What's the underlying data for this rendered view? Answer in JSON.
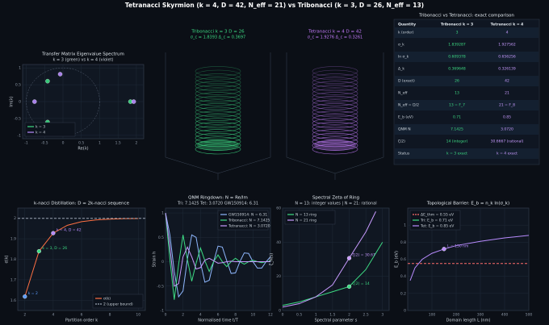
{
  "title": "Tetranacci Skyrmion  (k = 4,  D = 42,  N_eff = 21)  vs  Tribonacci  (k = 3,  D = 26,  N_eff = 13)",
  "chart_data": [
    {
      "type": "scatter",
      "title": "Transfer Matrix Eigenvalue Spectrum",
      "subtitle": "k = 3 (green) vs k = 4 (violet)",
      "xlabel": "Re(λ)",
      "ylabel": "Im(λ)",
      "xlim": [
        -1.1,
        2.2
      ],
      "ylim": [
        -1.1,
        1.1
      ],
      "xticks": [
        -1,
        -0.5,
        0,
        0.5,
        1,
        1.5,
        2
      ],
      "yticks": [
        -1,
        -0.5,
        0,
        0.5,
        1
      ],
      "series": [
        {
          "name": "k = 3",
          "color": "#3ddc84",
          "x": [
            1.8393,
            -0.4196,
            -0.4196
          ],
          "values": [
            0,
            0.6063,
            -0.6063
          ]
        },
        {
          "name": "k = 4",
          "color": "#b98cff",
          "x": [
            1.9276,
            -0.7748,
            -0.0764,
            -0.0764
          ],
          "values": [
            0,
            0,
            0.8147,
            -0.8147
          ]
        }
      ]
    },
    {
      "type": "cylinder",
      "title": "Tribonacci  k = 3  D = 26",
      "subtitle": "σ_c = 1.8393  Δ_c = 0.3697",
      "color": "#3ddc84"
    },
    {
      "type": "cylinder",
      "title": "Tetranacci  k = 4  D = 42",
      "subtitle": "σ_c = 1.9276  Δ_c = 0.3261",
      "color": "#c77dff"
    },
    {
      "type": "line",
      "title": "k-nacci Distillation: D = 2k-nacci sequence",
      "xlabel": "Partition order k",
      "ylabel": "σ(k)",
      "xlim": [
        1.5,
        10.5
      ],
      "ylim": [
        1.55,
        2.05
      ],
      "xticks": [
        2,
        4,
        6,
        8,
        10
      ],
      "yticks": [
        1.6,
        1.7,
        1.8,
        1.9,
        2
      ],
      "legend": "lower right",
      "series": [
        {
          "name": "σ(k)",
          "color": "#ff7043",
          "x": [
            2,
            3,
            4,
            5,
            6,
            7,
            8,
            9,
            10
          ],
          "values": [
            1.618,
            1.8393,
            1.9276,
            1.9659,
            1.9836,
            1.992,
            1.9961,
            1.9981,
            1.999
          ]
        },
        {
          "name": "2 (upper bound)",
          "color": "#9aa4b2",
          "dash": true,
          "x": [
            1.5,
            10.5
          ],
          "values": [
            2,
            2
          ]
        }
      ],
      "points": [
        {
          "x": 2,
          "value": 1.618,
          "label": "k = 2",
          "color": "#5b9bff"
        },
        {
          "x": 3,
          "value": 1.8393,
          "label": "k = 3, D = 26",
          "color": "#3ddc84"
        },
        {
          "x": 4,
          "value": 1.9276,
          "label": "k = 4, D = 42",
          "color": "#b98cff"
        }
      ]
    },
    {
      "type": "line",
      "title": "QNM Ringdown: N = Re/Im",
      "subtitle": "Tri: 7.1425   Tet: 3.0720   GW150914: 6.31",
      "xlabel": "Normalised time t/T",
      "ylabel": "Strain h",
      "xlim": [
        0,
        12
      ],
      "ylim": [
        -1,
        1.1
      ],
      "xticks": [
        0,
        2,
        4,
        6,
        8,
        10,
        12
      ],
      "yticks": [
        -1,
        -0.5,
        0,
        0.5,
        1
      ],
      "legend": "upper right",
      "series": [
        {
          "name": "GW150914: N = 6.31",
          "color": "#8fb8ff",
          "x": [
            0,
            0.5,
            1,
            1.5,
            2,
            2.5,
            3,
            3.5,
            4,
            4.5,
            5,
            5.5,
            6,
            6.5,
            7,
            7.5,
            8,
            8.5,
            9,
            9.5,
            10,
            10.5,
            11,
            11.5,
            12
          ],
          "values": [
            1,
            0.55,
            -0.2,
            -0.72,
            -0.6,
            0.05,
            0.55,
            0.5,
            -0.02,
            -0.42,
            -0.38,
            0,
            0.32,
            0.3,
            0.02,
            -0.24,
            -0.23,
            0,
            0.18,
            0.17,
            0,
            -0.13,
            -0.13,
            0,
            0.1
          ]
        },
        {
          "name": "Tribonacci: N = 7.1425",
          "color": "#3ddc84",
          "x": [
            0,
            0.5,
            1,
            1.5,
            2,
            2.5,
            3,
            3.5,
            4,
            4.5,
            5,
            5.5,
            6,
            6.5,
            7,
            7.5,
            8,
            8.5,
            9,
            9.5,
            10,
            10.5,
            11,
            11.5,
            12
          ],
          "values": [
            1,
            0.05,
            -0.78,
            -0.05,
            0.55,
            0.05,
            -0.4,
            -0.03,
            0.28,
            0.02,
            -0.2,
            0,
            0.14,
            0,
            -0.1,
            0,
            0.07,
            0,
            -0.05,
            0,
            0.03,
            0,
            -0.02,
            0,
            0.01
          ]
        },
        {
          "name": "Tetranacci: N = 3.0720",
          "color": "#c89bff",
          "x": [
            0,
            0.5,
            1,
            1.5,
            2,
            2.5,
            3,
            3.5,
            4,
            4.5,
            5,
            5.5,
            6,
            6.5,
            7,
            7.5,
            8,
            8.5,
            9,
            9.5,
            10,
            10.5,
            11,
            11.5,
            12
          ],
          "values": [
            1,
            0.3,
            -0.5,
            -0.45,
            0.1,
            0.3,
            0.1,
            -0.15,
            -0.12,
            0.03,
            0.07,
            0.02,
            -0.03,
            -0.02,
            0,
            0.01,
            0,
            0,
            0,
            0,
            0,
            0,
            0,
            0,
            0
          ]
        }
      ]
    },
    {
      "type": "line",
      "title": "Spectral Zeta of Ring",
      "subtitle": "N = 13: integer values  |  N = 21: rational",
      "xlabel": "Spectral parameter s",
      "ylabel": "ζ_N(s)",
      "xlim": [
        0,
        3.2
      ],
      "ylim": [
        0,
        60
      ],
      "xticks": [
        0,
        0.5,
        1,
        1.5,
        2,
        2.5,
        3
      ],
      "yticks": [
        0,
        20,
        40,
        60
      ],
      "legend": "upper left",
      "series": [
        {
          "name": "N = 13 ring",
          "color": "#3ddc84",
          "x": [
            0,
            0.5,
            1,
            1.5,
            2,
            2.5,
            3
          ],
          "values": [
            3,
            5,
            8,
            11,
            14,
            24,
            40
          ]
        },
        {
          "name": "N = 21 ring",
          "color": "#c89bff",
          "x": [
            0,
            0.5,
            1,
            1.5,
            2,
            2.5,
            2.8
          ],
          "values": [
            2,
            4,
            8,
            15,
            30.6667,
            46,
            58
          ]
        }
      ],
      "points": [
        {
          "x": 2,
          "value": 14,
          "label": "ζ(2) = 14",
          "color": "#3ddc84"
        },
        {
          "x": 2,
          "value": 30.6667,
          "label": "ζ(2) = 30.67",
          "color": "#c89bff"
        }
      ]
    },
    {
      "type": "line",
      "title": "Topological Barrier: E_b = n_k ln(σ_k)",
      "xlabel": "Domain length L (nm)",
      "ylabel": "E_b (eV)",
      "xlim": [
        0,
        500
      ],
      "ylim": [
        0,
        1.2
      ],
      "xticks": [
        100,
        200,
        300,
        400,
        500
      ],
      "yticks": [
        0,
        0.2,
        0.4,
        0.6,
        0.8,
        1
      ],
      "legend": "upper left",
      "series": [
        {
          "name": "ΔE_thm = 0.55 eV",
          "color": "#ff6b6b",
          "dash": true,
          "x": [
            0,
            500
          ],
          "values": [
            0.55,
            0.55
          ]
        },
        {
          "name": "Tri: E_b = 0.71 eV",
          "color": "#3ddc84",
          "x": [],
          "values": []
        },
        {
          "name": "Tet: E_b = 0.85 eV",
          "color": "#b98cff",
          "x": [
            10,
            30,
            60,
            100,
            150,
            200,
            300,
            400,
            500
          ],
          "values": [
            0.35,
            0.5,
            0.6,
            0.67,
            0.72,
            0.76,
            0.81,
            0.85,
            0.88
          ]
        }
      ],
      "points": [
        {
          "x": 150,
          "value": 0.72,
          "label": "L = 150 nm",
          "color": "#b98cff"
        }
      ]
    }
  ],
  "table": {
    "title": "Tribonacci vs Tetranacci: exact comparison",
    "header": [
      "Quantity",
      "Tribonacci k = 3",
      "Tetranacci k = 4"
    ],
    "rows": [
      [
        "k (order)",
        "3",
        "4"
      ],
      [
        "σ_k",
        "1.839287",
        "1.927562"
      ],
      [
        "ln σ_k",
        "0.609378",
        "0.656256"
      ],
      [
        "Δ_k",
        "0.369648",
        "0.326139"
      ],
      [
        "D (exact)",
        "26",
        "42"
      ],
      [
        "N_eff",
        "13",
        "21"
      ],
      [
        "N_eff = D/2",
        "13 = F_7",
        "21 = F_8"
      ],
      [
        "E_b (eV)",
        "0.71",
        "0.85"
      ],
      [
        "QNM N",
        "7.1425",
        "3.0720"
      ],
      [
        "ζ(2)",
        "14 (integer)",
        "30.6667 (rational)"
      ],
      [
        "Status",
        "k = 3 exact",
        "k = 4 exact"
      ]
    ]
  }
}
